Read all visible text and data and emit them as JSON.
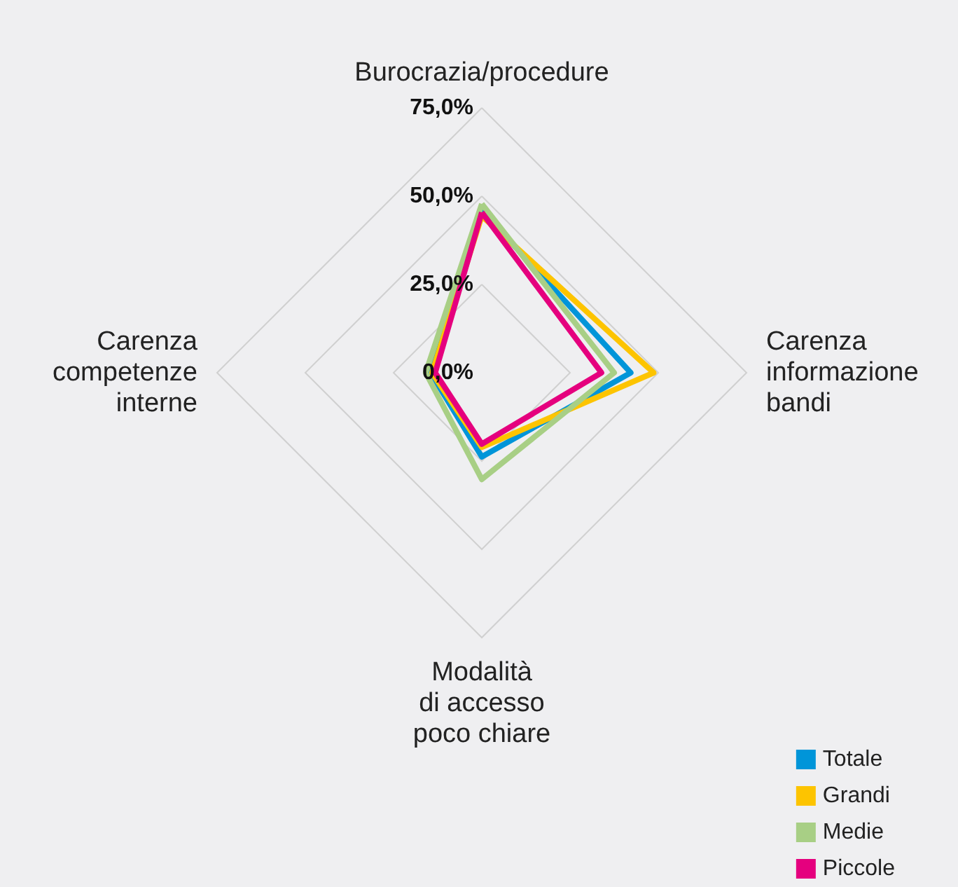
{
  "chart_data": {
    "type": "radar",
    "categories": [
      "Burocrazia/procedure",
      "Carenza informazione bandi",
      "Modalità di accesso poco chiare",
      "Carenza competenze interne"
    ],
    "series": [
      {
        "name": "Totale",
        "color": "#0095d9",
        "values": [
          46,
          42.2,
          23.8,
          14.5
        ]
      },
      {
        "name": "Grandi",
        "color": "#fdc400",
        "values": [
          44.4,
          48.7,
          21.1,
          14.1
        ]
      },
      {
        "name": "Medie",
        "color": "#a8cf85",
        "values": [
          47.8,
          37.5,
          30.2,
          15.9
        ]
      },
      {
        "name": "Piccole",
        "color": "#e5007e",
        "values": [
          45.4,
          33.9,
          20.2,
          13.2
        ]
      }
    ],
    "ylim": [
      0,
      75
    ],
    "yticks": [
      {
        "value": 0,
        "label": "0,0%"
      },
      {
        "value": 25,
        "label": "25,0%"
      },
      {
        "value": 50,
        "label": "50,0%"
      },
      {
        "value": 75,
        "label": "75,0%"
      }
    ],
    "legend": "bottom right",
    "marker": "none",
    "line_style": "solid"
  }
}
